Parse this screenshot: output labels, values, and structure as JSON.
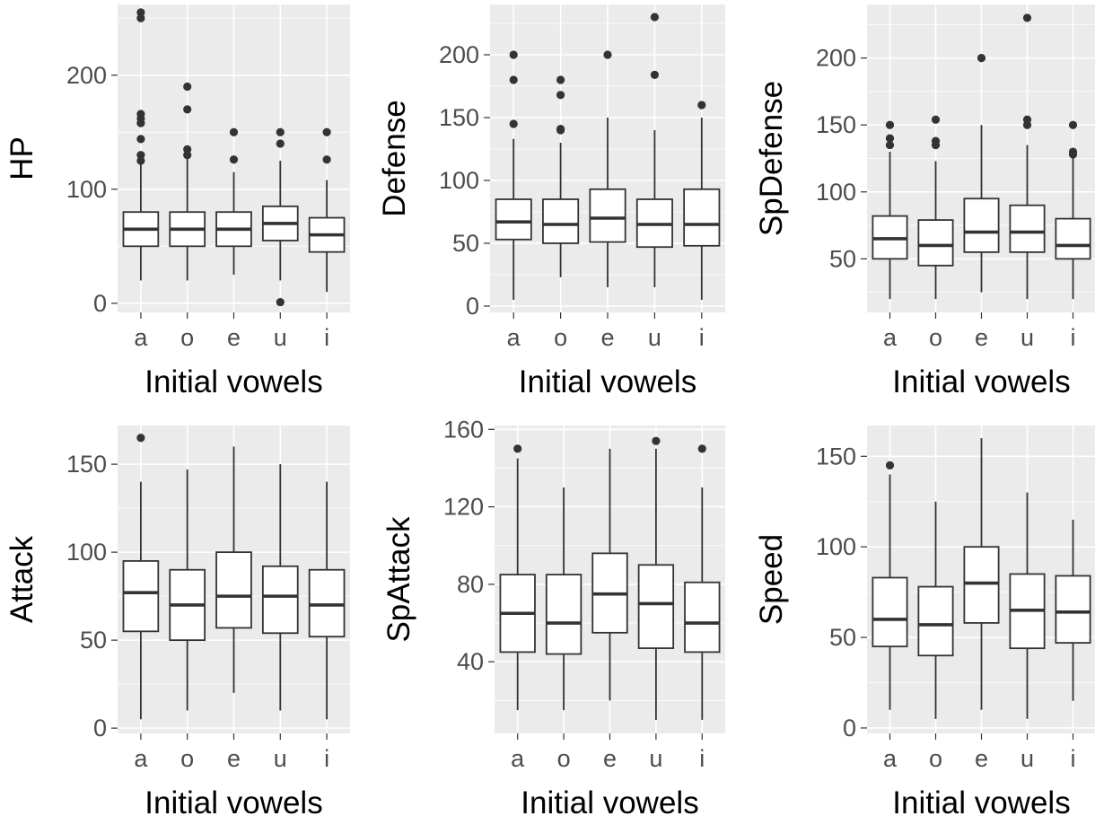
{
  "chart_data": [
    {
      "type": "box",
      "ylabel": "HP",
      "xlabel": "Initial vowels",
      "categories": [
        "a",
        "o",
        "e",
        "u",
        "i"
      ],
      "ylim": [
        -8,
        262
      ],
      "yticks": [
        0,
        100,
        200
      ],
      "grid": true,
      "boxes": [
        {
          "category": "a",
          "whisker_low": 20,
          "q1": 50,
          "median": 65,
          "q3": 80,
          "whisker_high": 123,
          "outliers": [
            125,
            130,
            144,
            158,
            162,
            166,
            250,
            255
          ]
        },
        {
          "category": "o",
          "whisker_low": 20,
          "q1": 50,
          "median": 65,
          "q3": 80,
          "whisker_high": 127,
          "outliers": [
            130,
            135,
            170,
            190
          ]
        },
        {
          "category": "e",
          "whisker_low": 25,
          "q1": 50,
          "median": 65,
          "q3": 80,
          "whisker_high": 115,
          "outliers": [
            126,
            150
          ]
        },
        {
          "category": "u",
          "whisker_low": 20,
          "q1": 55,
          "median": 70,
          "q3": 85,
          "whisker_high": 125,
          "outliers": [
            1,
            140,
            150
          ]
        },
        {
          "category": "i",
          "whisker_low": 10,
          "q1": 45,
          "median": 60,
          "q3": 75,
          "whisker_high": 108,
          "outliers": [
            126,
            150
          ]
        }
      ]
    },
    {
      "type": "box",
      "ylabel": "Defense",
      "xlabel": "Initial vowels",
      "categories": [
        "a",
        "o",
        "e",
        "u",
        "i"
      ],
      "ylim": [
        -5,
        240
      ],
      "yticks": [
        0,
        50,
        100,
        150,
        200
      ],
      "grid": true,
      "boxes": [
        {
          "category": "a",
          "whisker_low": 5,
          "q1": 53,
          "median": 67,
          "q3": 85,
          "whisker_high": 133,
          "outliers": [
            145,
            180,
            200
          ]
        },
        {
          "category": "o",
          "whisker_low": 23,
          "q1": 50,
          "median": 65,
          "q3": 85,
          "whisker_high": 130,
          "outliers": [
            140,
            141,
            168,
            180
          ]
        },
        {
          "category": "e",
          "whisker_low": 15,
          "q1": 51,
          "median": 70,
          "q3": 93,
          "whisker_high": 150,
          "outliers": [
            200
          ]
        },
        {
          "category": "u",
          "whisker_low": 15,
          "q1": 47,
          "median": 65,
          "q3": 85,
          "whisker_high": 140,
          "outliers": [
            184,
            230
          ]
        },
        {
          "category": "i",
          "whisker_low": 5,
          "q1": 48,
          "median": 65,
          "q3": 93,
          "whisker_high": 150,
          "outliers": [
            160
          ]
        }
      ]
    },
    {
      "type": "box",
      "ylabel": "SpDefense",
      "xlabel": "Initial vowels",
      "categories": [
        "a",
        "o",
        "e",
        "u",
        "i"
      ],
      "ylim": [
        10,
        240
      ],
      "yticks": [
        50,
        100,
        150,
        200
      ],
      "grid": true,
      "boxes": [
        {
          "category": "a",
          "whisker_low": 20,
          "q1": 50,
          "median": 65,
          "q3": 82,
          "whisker_high": 130,
          "outliers": [
            135,
            140,
            150
          ]
        },
        {
          "category": "o",
          "whisker_low": 20,
          "q1": 45,
          "median": 60,
          "q3": 79,
          "whisker_high": 123,
          "outliers": [
            135,
            138,
            154
          ]
        },
        {
          "category": "e",
          "whisker_low": 25,
          "q1": 55,
          "median": 70,
          "q3": 95,
          "whisker_high": 150,
          "outliers": [
            200
          ]
        },
        {
          "category": "u",
          "whisker_low": 20,
          "q1": 55,
          "median": 70,
          "q3": 90,
          "whisker_high": 135,
          "outliers": [
            150,
            154,
            230
          ]
        },
        {
          "category": "i",
          "whisker_low": 20,
          "q1": 50,
          "median": 60,
          "q3": 80,
          "whisker_high": 125,
          "outliers": [
            128,
            130,
            150
          ]
        }
      ]
    },
    {
      "type": "box",
      "ylabel": "Attack",
      "xlabel": "Initial vowels",
      "categories": [
        "a",
        "o",
        "e",
        "u",
        "i"
      ],
      "ylim": [
        -3,
        172
      ],
      "yticks": [
        0,
        50,
        100,
        150
      ],
      "grid": true,
      "boxes": [
        {
          "category": "a",
          "whisker_low": 5,
          "q1": 55,
          "median": 77,
          "q3": 95,
          "whisker_high": 140,
          "outliers": [
            165
          ]
        },
        {
          "category": "o",
          "whisker_low": 10,
          "q1": 50,
          "median": 70,
          "q3": 90,
          "whisker_high": 147,
          "outliers": []
        },
        {
          "category": "e",
          "whisker_low": 20,
          "q1": 57,
          "median": 75,
          "q3": 100,
          "whisker_high": 160,
          "outliers": []
        },
        {
          "category": "u",
          "whisker_low": 10,
          "q1": 54,
          "median": 75,
          "q3": 92,
          "whisker_high": 150,
          "outliers": []
        },
        {
          "category": "i",
          "whisker_low": 5,
          "q1": 52,
          "median": 70,
          "q3": 90,
          "whisker_high": 140,
          "outliers": []
        }
      ]
    },
    {
      "type": "box",
      "ylabel": "SpAttack",
      "xlabel": "Initial vowels",
      "categories": [
        "a",
        "o",
        "e",
        "u",
        "i"
      ],
      "ylim": [
        3,
        162
      ],
      "yticks": [
        40,
        80,
        120,
        160
      ],
      "grid": true,
      "boxes": [
        {
          "category": "a",
          "whisker_low": 15,
          "q1": 45,
          "median": 65,
          "q3": 85,
          "whisker_high": 145,
          "outliers": [
            150
          ]
        },
        {
          "category": "o",
          "whisker_low": 15,
          "q1": 44,
          "median": 60,
          "q3": 85,
          "whisker_high": 130,
          "outliers": []
        },
        {
          "category": "e",
          "whisker_low": 20,
          "q1": 55,
          "median": 75,
          "q3": 96,
          "whisker_high": 150,
          "outliers": []
        },
        {
          "category": "u",
          "whisker_low": 10,
          "q1": 47,
          "median": 70,
          "q3": 90,
          "whisker_high": 150,
          "outliers": [
            154
          ]
        },
        {
          "category": "i",
          "whisker_low": 10,
          "q1": 45,
          "median": 60,
          "q3": 81,
          "whisker_high": 130,
          "outliers": [
            150
          ]
        }
      ]
    },
    {
      "type": "box",
      "ylabel": "Speed",
      "xlabel": "Initial vowels",
      "categories": [
        "a",
        "o",
        "e",
        "u",
        "i"
      ],
      "ylim": [
        -3,
        167
      ],
      "yticks": [
        0,
        50,
        100,
        150
      ],
      "grid": true,
      "boxes": [
        {
          "category": "a",
          "whisker_low": 10,
          "q1": 45,
          "median": 60,
          "q3": 83,
          "whisker_high": 140,
          "outliers": [
            145
          ]
        },
        {
          "category": "o",
          "whisker_low": 5,
          "q1": 40,
          "median": 57,
          "q3": 78,
          "whisker_high": 125,
          "outliers": []
        },
        {
          "category": "e",
          "whisker_low": 10,
          "q1": 58,
          "median": 80,
          "q3": 100,
          "whisker_high": 160,
          "outliers": []
        },
        {
          "category": "u",
          "whisker_low": 5,
          "q1": 44,
          "median": 65,
          "q3": 85,
          "whisker_high": 130,
          "outliers": []
        },
        {
          "category": "i",
          "whisker_low": 15,
          "q1": 47,
          "median": 64,
          "q3": 84,
          "whisker_high": 115,
          "outliers": []
        }
      ]
    }
  ]
}
